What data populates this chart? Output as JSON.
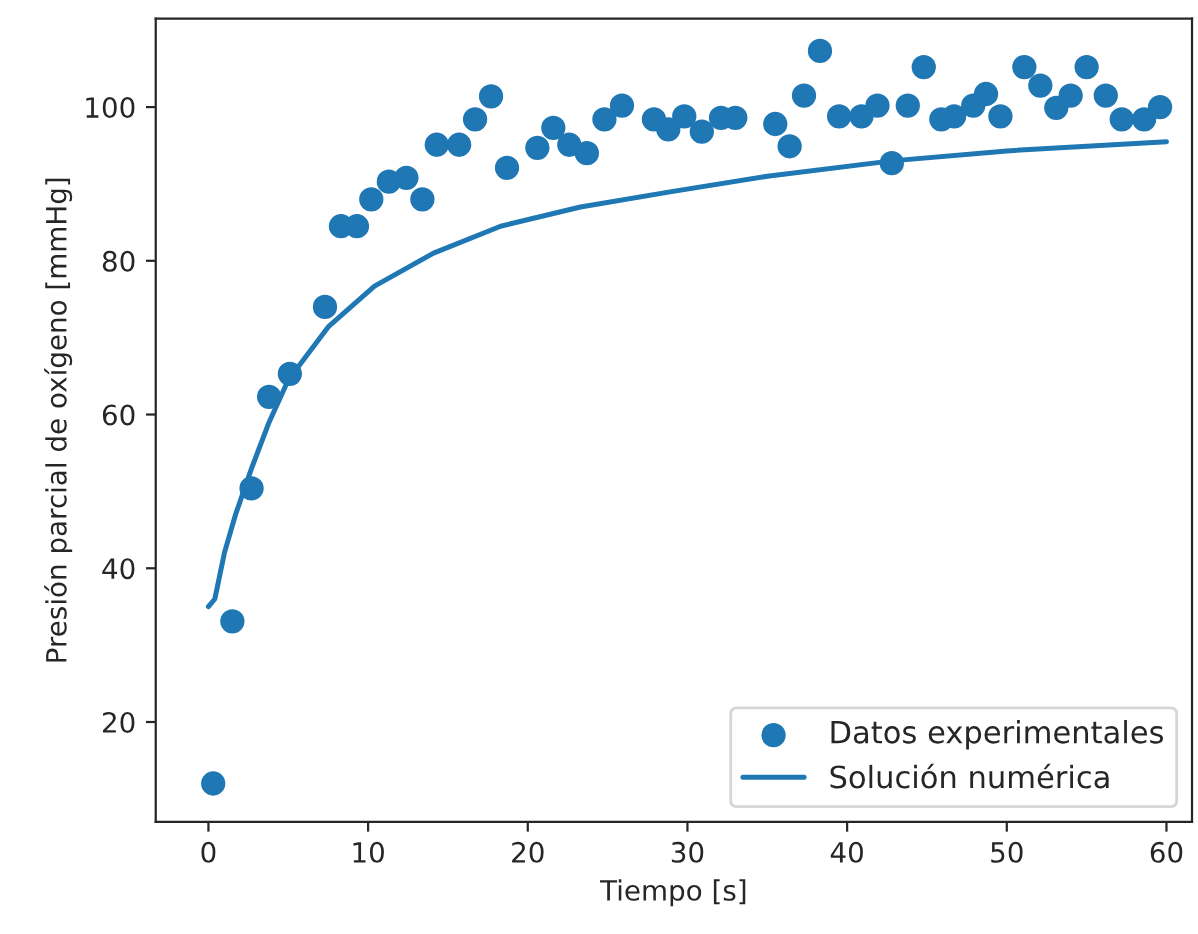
{
  "chart_data": {
    "type": "scatter",
    "xlabel": "Tiempo [s]",
    "ylabel": "Presión parcial de oxígeno [mmHg]",
    "xlim": [
      -3.3,
      61.6
    ],
    "ylim": [
      7,
      111.5
    ],
    "xticks": [
      0,
      10,
      20,
      30,
      40,
      50,
      60
    ],
    "yticks": [
      20,
      40,
      60,
      80,
      100
    ],
    "grid": false,
    "legend": "bottom right",
    "series": [
      {
        "name": "Datos experimentales",
        "marker": "circle",
        "color": "#1f77b4",
        "x": [
          0.3,
          1.5,
          2.7,
          3.8,
          5.1,
          7.3,
          8.3,
          9.3,
          10.2,
          11.3,
          12.4,
          13.4,
          14.3,
          15.7,
          16.7,
          17.7,
          18.7,
          20.6,
          21.6,
          22.6,
          23.7,
          24.8,
          25.9,
          27.9,
          28.8,
          29.8,
          30.9,
          32.1,
          33.0,
          35.5,
          36.4,
          37.3,
          38.3,
          39.5,
          40.9,
          41.9,
          42.8,
          43.8,
          44.8,
          45.9,
          46.7,
          47.9,
          48.7,
          49.6,
          51.1,
          52.1,
          53.1,
          54.0,
          55.0,
          56.2,
          57.2,
          58.6,
          59.6
        ],
        "values": [
          12.0,
          33.1,
          50.4,
          62.3,
          65.3,
          74.0,
          84.5,
          84.5,
          88.0,
          90.3,
          90.8,
          88.0,
          95.1,
          95.1,
          98.4,
          101.4,
          92.1,
          94.7,
          97.3,
          95.1,
          94.0,
          98.4,
          100.2,
          98.4,
          97.1,
          98.8,
          96.8,
          98.6,
          98.6,
          97.8,
          94.9,
          101.5,
          107.3,
          98.8,
          98.8,
          100.2,
          92.7,
          100.2,
          105.2,
          98.4,
          98.8,
          100.2,
          101.7,
          98.8,
          105.2,
          102.8,
          99.9,
          101.5,
          105.2,
          101.5,
          98.4,
          98.4,
          100.0
        ]
      },
      {
        "name": "Solución numérica",
        "type": "line",
        "line_style": "solid",
        "marker": "none",
        "color": "#1f77b4",
        "x": [
          0,
          0.4,
          1.0,
          1.7,
          2.7,
          3.8,
          5.0,
          7.5,
          10.4,
          14.1,
          18.3,
          23.3,
          29.0,
          35.0,
          42.8,
          50.0,
          60.0
        ],
        "values": [
          35,
          36,
          42,
          47,
          53,
          59,
          64.5,
          71.4,
          76.7,
          81,
          84.5,
          87,
          89,
          91,
          93,
          94.3,
          95.5
        ]
      }
    ]
  }
}
